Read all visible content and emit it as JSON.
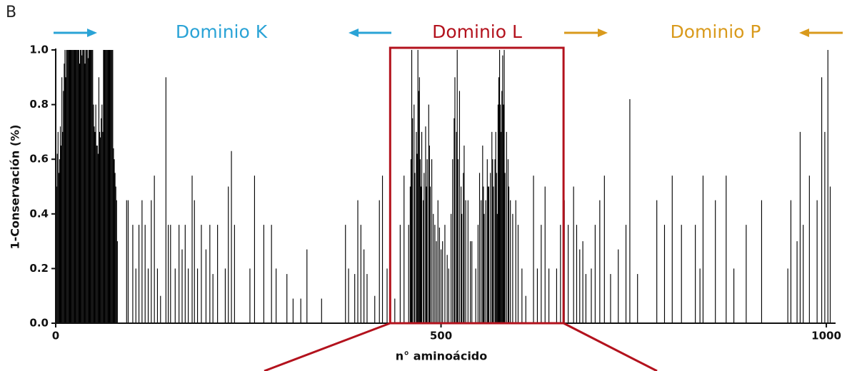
{
  "chart_data": {
    "type": "bar",
    "panel": "B",
    "annotations": [
      "Dominio K",
      "Dominio L",
      "Dominio P"
    ],
    "annotation_colors": [
      "#2aa3d6",
      "#b3121d",
      "#d99a1c"
    ],
    "highlight": [
      434,
      659
    ],
    "highlight_color": "#b3121d",
    "xlabel": "n° aminoácido",
    "ylabel": "1-Conservación (%)",
    "color": "#000000",
    "xlim": [
      0,
      1012
    ],
    "ylim": [
      0,
      1
    ],
    "xticks": [
      0,
      500,
      1000
    ],
    "yticks": [
      {
        "value": 0,
        "label": "0.0"
      },
      0.2,
      0.4,
      0.6,
      0.8,
      {
        "value": 1,
        "label": "1.0"
      }
    ],
    "x": [
      1,
      2,
      3,
      4,
      5,
      6,
      7,
      8,
      9,
      10,
      11,
      12,
      13,
      14,
      15,
      16,
      17,
      18,
      19,
      20,
      21,
      22,
      23,
      24,
      25,
      26,
      27,
      28,
      29,
      30,
      31,
      32,
      33,
      34,
      35,
      36,
      37,
      38,
      39,
      40,
      41,
      42,
      43,
      44,
      45,
      46,
      47,
      48,
      49,
      50,
      51,
      52,
      53,
      54,
      55,
      56,
      57,
      58,
      59,
      60,
      61,
      62,
      63,
      64,
      65,
      66,
      67,
      68,
      69,
      70,
      71,
      72,
      73,
      74,
      75,
      76,
      77,
      78,
      79,
      80,
      92,
      94,
      100,
      104,
      108,
      112,
      116,
      120,
      124,
      128,
      132,
      136,
      143,
      146,
      149,
      155,
      160,
      164,
      168,
      172,
      177,
      180,
      184,
      189,
      195,
      200,
      204,
      210,
      220,
      224,
      228,
      232,
      252,
      258,
      270,
      280,
      286,
      300,
      308,
      318,
      326,
      345,
      376,
      380,
      388,
      392,
      396,
      400,
      404,
      414,
      420,
      424,
      430,
      440,
      447,
      452,
      458,
      460,
      461,
      462,
      463,
      465,
      466,
      468,
      469,
      470,
      471,
      472,
      473,
      474,
      475,
      477,
      478,
      480,
      481,
      482,
      484,
      485,
      486,
      488,
      490,
      492,
      494,
      496,
      498,
      500,
      502,
      505,
      508,
      510,
      513,
      515,
      517,
      518,
      520,
      521,
      522,
      524,
      526,
      527,
      529,
      530,
      532,
      535,
      538,
      540,
      545,
      548,
      550,
      552,
      554,
      555,
      556,
      558,
      560,
      561,
      562,
      564,
      566,
      567,
      568,
      570,
      571,
      572,
      573,
      574,
      575,
      576,
      577,
      578,
      579,
      580,
      581,
      582,
      583,
      585,
      587,
      588,
      590,
      593,
      597,
      600,
      605,
      610,
      620,
      625,
      630,
      635,
      640,
      650,
      655,
      660,
      665,
      672,
      676,
      680,
      684,
      688,
      695,
      700,
      706,
      712,
      720,
      730,
      740,
      745,
      755,
      780,
      790,
      800,
      812,
      830,
      836,
      840,
      856,
      870,
      880,
      896,
      916,
      950,
      954,
      962,
      966,
      970,
      978,
      988,
      994,
      998,
      1002,
      1005
    ],
    "values": [
      0.5,
      0.62,
      0.7,
      0.55,
      0.6,
      0.72,
      0.65,
      0.9,
      0.7,
      0.85,
      0.95,
      1,
      0.9,
      1,
      1,
      1,
      1,
      1,
      1,
      1,
      1,
      1,
      1,
      1,
      1,
      1,
      1,
      1,
      1,
      1,
      0.95,
      1,
      1,
      0.98,
      1,
      1,
      1,
      0.95,
      1,
      1,
      1,
      0.97,
      1,
      1,
      1,
      1,
      1,
      1,
      0.8,
      0.72,
      0.7,
      0.8,
      0.65,
      0.65,
      0.62,
      0.9,
      0.7,
      0.68,
      0.75,
      0.8,
      0.7,
      1,
      1,
      1,
      1,
      1,
      1,
      1,
      1,
      1,
      1,
      1,
      1,
      1,
      0.64,
      0.6,
      0.55,
      0.5,
      0.45,
      0.3,
      0.45,
      0.45,
      0.36,
      0.2,
      0.36,
      0.45,
      0.36,
      0.2,
      0.45,
      0.54,
      0.2,
      0.1,
      0.9,
      0.36,
      0.36,
      0.2,
      0.36,
      0.27,
      0.36,
      0.2,
      0.54,
      0.45,
      0.2,
      0.36,
      0.27,
      0.36,
      0.18,
      0.36,
      0.2,
      0.5,
      0.63,
      0.36,
      0.2,
      0.54,
      0.36,
      0.36,
      0.2,
      0.18,
      0.09,
      0.09,
      0.27,
      0.09,
      0.36,
      0.2,
      0.18,
      0.45,
      0.36,
      0.27,
      0.18,
      0.1,
      0.45,
      0.54,
      0.2,
      0.09,
      0.36,
      0.54,
      0.36,
      0.5,
      0.6,
      1,
      0.75,
      0.8,
      0.55,
      0.7,
      0.62,
      1,
      0.85,
      0.9,
      0.6,
      0.5,
      0.7,
      0.45,
      0.55,
      0.72,
      0.5,
      0.6,
      0.8,
      0.65,
      0.5,
      0.6,
      0.4,
      0.36,
      0.3,
      0.45,
      0.35,
      0.27,
      0.3,
      0.36,
      0.25,
      0.2,
      0.4,
      0.6,
      0.75,
      0.9,
      0.7,
      1,
      0.6,
      0.85,
      0.5,
      0.4,
      0.55,
      0.65,
      0.45,
      0.45,
      0.3,
      0.3,
      0.2,
      0.36,
      0.55,
      0.45,
      0.65,
      0.5,
      0.4,
      0.45,
      0.6,
      0.5,
      0.5,
      0.55,
      0.7,
      0.6,
      0.5,
      0.6,
      0.7,
      0.55,
      0.4,
      0.8,
      0.9,
      1,
      0.8,
      0.7,
      0.85,
      0.98,
      0.8,
      1,
      0.55,
      0.7,
      0.6,
      0.5,
      0.45,
      0.4,
      0.45,
      0.36,
      0.2,
      0.1,
      0.54,
      0.2,
      0.36,
      0.5,
      0.2,
      0.2,
      0.36,
      0.45,
      0.36,
      0.5,
      0.36,
      0.27,
      0.3,
      0.18,
      0.2,
      0.36,
      0.45,
      0.54,
      0.18,
      0.27,
      0.36,
      0.82,
      0.18,
      0.45,
      0.36,
      0.54,
      0.36,
      0.36,
      0.2,
      0.54,
      0.45,
      0.54,
      0.2,
      0.36,
      0.45,
      0.2,
      0.45,
      0.3,
      0.7,
      0.36,
      0.54,
      0.45,
      0.9,
      0.7,
      1,
      0.5
    ]
  }
}
